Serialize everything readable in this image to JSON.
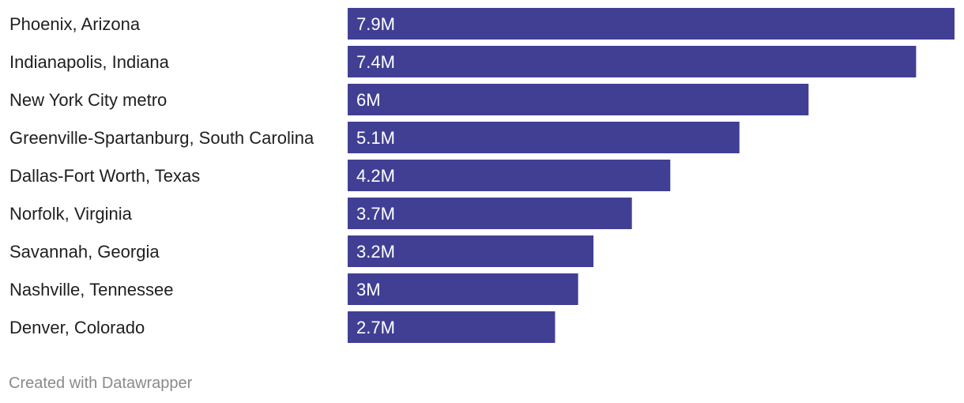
{
  "chart_data": {
    "type": "bar",
    "orientation": "horizontal",
    "categories": [
      "Phoenix, Arizona",
      "Indianapolis, Indiana",
      "New York City metro",
      "Greenville-Spartanburg, South Carolina",
      "Dallas-Fort Worth, Texas",
      "Norfolk, Virginia",
      "Savannah, Georgia",
      "Nashville, Tennessee",
      "Denver, Colorado"
    ],
    "values": [
      7.9,
      7.4,
      6,
      5.1,
      4.2,
      3.7,
      3.2,
      3,
      2.7
    ],
    "value_labels": [
      "7.9M",
      "7.4M",
      "6M",
      "5.1M",
      "4.2M",
      "3.7M",
      "3.2M",
      "3M",
      "2.7M"
    ],
    "xlim": [
      0,
      7.9
    ],
    "grid": false,
    "bar_color": "#413f94"
  },
  "footer": {
    "credit": "Created with Datawrapper"
  }
}
